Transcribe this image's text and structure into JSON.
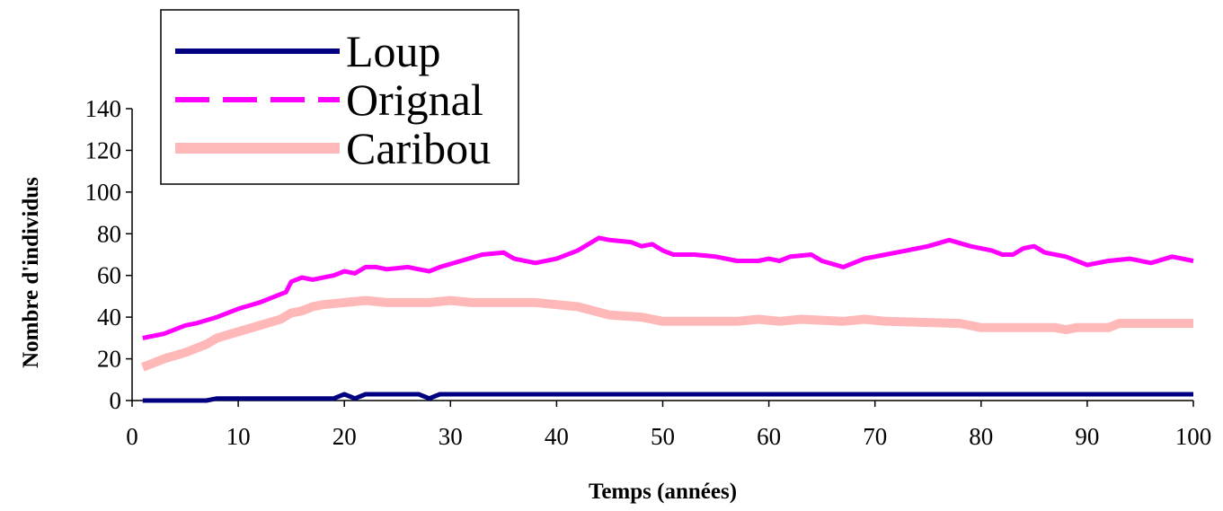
{
  "chart_data": {
    "type": "line",
    "title": "",
    "xlabel": "Temps (années)",
    "ylabel": "Nombre d'individus",
    "xlim": [
      0,
      100
    ],
    "ylim": [
      0,
      140
    ],
    "xticks": [
      0,
      10,
      20,
      30,
      40,
      50,
      60,
      70,
      80,
      90,
      100
    ],
    "yticks": [
      0,
      20,
      40,
      60,
      80,
      100,
      120,
      140
    ],
    "legend_position": "top-left",
    "grid": false,
    "series": [
      {
        "name": "Loup",
        "color": "#000080",
        "style": "solid",
        "points": [
          [
            1,
            0
          ],
          [
            7,
            0
          ],
          [
            8,
            1
          ],
          [
            19,
            1
          ],
          [
            20,
            3
          ],
          [
            21,
            1
          ],
          [
            22,
            3
          ],
          [
            27,
            3
          ],
          [
            28,
            1
          ],
          [
            29,
            3
          ],
          [
            100,
            3
          ]
        ]
      },
      {
        "name": "Orignal",
        "color": "#FF00FF",
        "style": "dashed",
        "points": [
          [
            1,
            30
          ],
          [
            3,
            32
          ],
          [
            5,
            36
          ],
          [
            6,
            37
          ],
          [
            8,
            40
          ],
          [
            10,
            44
          ],
          [
            12,
            47
          ],
          [
            14,
            51
          ],
          [
            14.5,
            52
          ],
          [
            15,
            57
          ],
          [
            16,
            59
          ],
          [
            17,
            58
          ],
          [
            19,
            60
          ],
          [
            20,
            62
          ],
          [
            21,
            61
          ],
          [
            22,
            64
          ],
          [
            23,
            64
          ],
          [
            24,
            63
          ],
          [
            26,
            64
          ],
          [
            27,
            63
          ],
          [
            28,
            62
          ],
          [
            29,
            64
          ],
          [
            31,
            67
          ],
          [
            33,
            70
          ],
          [
            35,
            71
          ],
          [
            36,
            68
          ],
          [
            38,
            66
          ],
          [
            40,
            68
          ],
          [
            42,
            72
          ],
          [
            44,
            78
          ],
          [
            45,
            77
          ],
          [
            47,
            76
          ],
          [
            48,
            74
          ],
          [
            49,
            75
          ],
          [
            50,
            72
          ],
          [
            51,
            70
          ],
          [
            53,
            70
          ],
          [
            55,
            69
          ],
          [
            57,
            67
          ],
          [
            59,
            67
          ],
          [
            60,
            68
          ],
          [
            61,
            67
          ],
          [
            62,
            69
          ],
          [
            64,
            70
          ],
          [
            65,
            67
          ],
          [
            67,
            64
          ],
          [
            69,
            68
          ],
          [
            71,
            70
          ],
          [
            73,
            72
          ],
          [
            75,
            74
          ],
          [
            77,
            77
          ],
          [
            79,
            74
          ],
          [
            81,
            72
          ],
          [
            82,
            70
          ],
          [
            83,
            70
          ],
          [
            84,
            73
          ],
          [
            85,
            74
          ],
          [
            86,
            71
          ],
          [
            88,
            69
          ],
          [
            90,
            65
          ],
          [
            92,
            67
          ],
          [
            94,
            68
          ],
          [
            96,
            66
          ],
          [
            98,
            69
          ],
          [
            100,
            67
          ]
        ]
      },
      {
        "name": "Caribou",
        "color": "#FFB8B8",
        "style": "solid",
        "points": [
          [
            1,
            16
          ],
          [
            3,
            20
          ],
          [
            5,
            23
          ],
          [
            7,
            27
          ],
          [
            8,
            30
          ],
          [
            10,
            33
          ],
          [
            12,
            36
          ],
          [
            14,
            39
          ],
          [
            15,
            42
          ],
          [
            16,
            43
          ],
          [
            17,
            45
          ],
          [
            18,
            46
          ],
          [
            20,
            47
          ],
          [
            22,
            48
          ],
          [
            24,
            47
          ],
          [
            28,
            47
          ],
          [
            30,
            48
          ],
          [
            32,
            47
          ],
          [
            38,
            47
          ],
          [
            40,
            46
          ],
          [
            42,
            45
          ],
          [
            45,
            41
          ],
          [
            48,
            40
          ],
          [
            50,
            38
          ],
          [
            57,
            38
          ],
          [
            59,
            39
          ],
          [
            61,
            38
          ],
          [
            63,
            39
          ],
          [
            67,
            38
          ],
          [
            69,
            39
          ],
          [
            71,
            38
          ],
          [
            78,
            37
          ],
          [
            80,
            35
          ],
          [
            87,
            35
          ],
          [
            88,
            34
          ],
          [
            89,
            35
          ],
          [
            92,
            35
          ],
          [
            93,
            37
          ],
          [
            100,
            37
          ]
        ]
      }
    ]
  }
}
